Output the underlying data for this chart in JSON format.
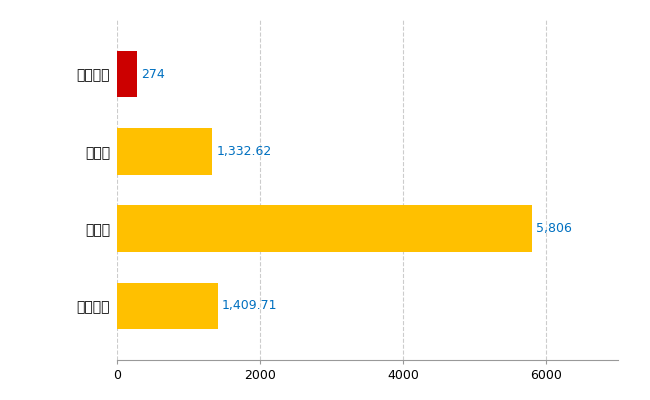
{
  "categories": [
    "全国平均",
    "県最大",
    "県平均",
    "南伊勢町"
  ],
  "values": [
    1409.71,
    5806,
    1332.62,
    274
  ],
  "bar_colors": [
    "#FFC000",
    "#FFC000",
    "#FFC000",
    "#CC0000"
  ],
  "labels": [
    "1,409.71",
    "5,806",
    "1,332.62",
    "274"
  ],
  "xlim": [
    0,
    7000
  ],
  "xticks": [
    0,
    2000,
    4000,
    6000
  ],
  "background_color": "#FFFFFF",
  "grid_color": "#CCCCCC",
  "label_color": "#0070C0",
  "bar_height": 0.6,
  "figsize": [
    6.5,
    4.0
  ],
  "dpi": 100
}
